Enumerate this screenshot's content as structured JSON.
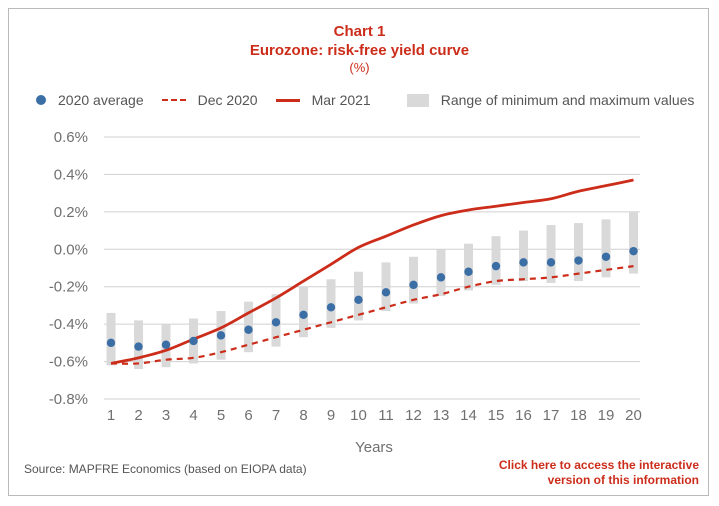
{
  "header": {
    "chart_number": "Chart 1",
    "title": "Eurozone: risk-free yield curve",
    "unit": "(%)"
  },
  "legend": {
    "avg_label": "2020 average",
    "dec_label": "Dec 2020",
    "mar_label": "Mar 2021",
    "range_label": "Range of minimum and maximum values"
  },
  "footer": {
    "source": "Source: MAPFRE Economics (based on EIOPA data)",
    "cta_line1": "Click here to access the interactive",
    "cta_line2": "version of this information"
  },
  "colors": {
    "avg_dots": "#3a6ea5",
    "lines": "#cc2d1a",
    "range_bars": "#d9d9d9",
    "grid": "#d0d0d0",
    "tick_text": "#707070"
  },
  "chart_data": {
    "type": "line",
    "xlabel": "Years",
    "ylabel": "",
    "categories": [
      1,
      2,
      3,
      4,
      5,
      6,
      7,
      8,
      9,
      10,
      11,
      12,
      13,
      14,
      15,
      16,
      17,
      18,
      19,
      20
    ],
    "ylim": [
      -0.8,
      0.6
    ],
    "yticks": [
      0.6,
      0.4,
      0.2,
      0.0,
      -0.2,
      -0.4,
      -0.6,
      -0.8
    ],
    "ytick_labels": [
      "0.6%",
      "0.4%",
      "0.2%",
      "0.0%",
      "-0.2%",
      "-0.4%",
      "-0.6%",
      "-0.8%"
    ],
    "grid": true,
    "legend_position": "top",
    "series": [
      {
        "name": "2020 average",
        "style": "dots",
        "values": [
          -0.5,
          -0.52,
          -0.51,
          -0.49,
          -0.46,
          -0.43,
          -0.39,
          -0.35,
          -0.31,
          -0.27,
          -0.23,
          -0.19,
          -0.15,
          -0.12,
          -0.09,
          -0.07,
          -0.07,
          -0.06,
          -0.04,
          -0.01
        ]
      },
      {
        "name": "Dec 2020",
        "style": "dashed",
        "values": [
          -0.61,
          -0.61,
          -0.59,
          -0.58,
          -0.55,
          -0.51,
          -0.47,
          -0.43,
          -0.39,
          -0.35,
          -0.31,
          -0.27,
          -0.24,
          -0.2,
          -0.17,
          -0.16,
          -0.15,
          -0.13,
          -0.11,
          -0.09
        ]
      },
      {
        "name": "Mar 2021",
        "style": "solid",
        "values": [
          -0.61,
          -0.58,
          -0.54,
          -0.48,
          -0.42,
          -0.34,
          -0.26,
          -0.17,
          -0.08,
          0.01,
          0.07,
          0.13,
          0.18,
          0.21,
          0.23,
          0.25,
          0.27,
          0.31,
          0.34,
          0.37
        ]
      },
      {
        "name": "Range of minimum and maximum values",
        "style": "range-bars",
        "min": [
          -0.62,
          -0.64,
          -0.63,
          -0.61,
          -0.59,
          -0.55,
          -0.52,
          -0.47,
          -0.42,
          -0.38,
          -0.33,
          -0.29,
          -0.25,
          -0.22,
          -0.19,
          -0.17,
          -0.18,
          -0.17,
          -0.15,
          -0.13
        ],
        "max": [
          -0.34,
          -0.38,
          -0.4,
          -0.37,
          -0.33,
          -0.28,
          -0.24,
          -0.2,
          -0.16,
          -0.12,
          -0.07,
          -0.04,
          0.0,
          0.03,
          0.07,
          0.1,
          0.13,
          0.14,
          0.16,
          0.2
        ]
      }
    ]
  }
}
